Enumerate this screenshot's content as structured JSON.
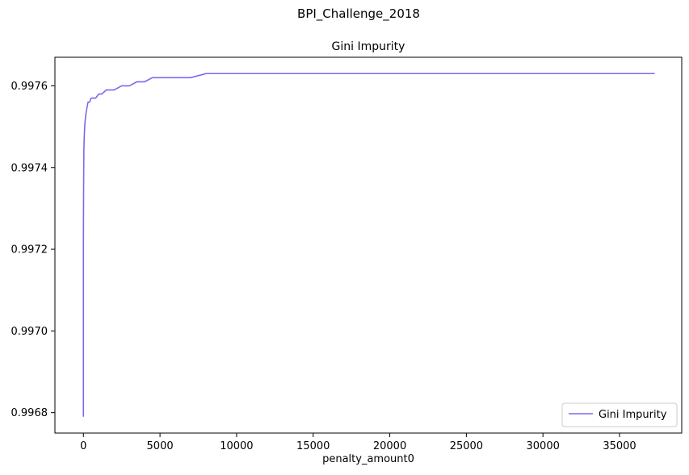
{
  "chart_data": {
    "type": "line",
    "title": "BPI_Challenge_2018",
    "subtitle": "Gini Impurity",
    "xlabel": "penalty_amount0",
    "ylabel": "",
    "xlim": [
      -1860,
      39060
    ],
    "ylim": [
      0.99675,
      0.99767
    ],
    "xticks": [
      0,
      5000,
      10000,
      15000,
      20000,
      25000,
      30000,
      35000
    ],
    "yticks": [
      0.9968,
      0.997,
      0.9972,
      0.9974,
      0.9976
    ],
    "xtick_labels": [
      "0",
      "5000",
      "10000",
      "15000",
      "20000",
      "25000",
      "30000",
      "35000"
    ],
    "ytick_labels": [
      "0.9968",
      "0.9970",
      "0.9972",
      "0.9974",
      "0.9976"
    ],
    "grid": false,
    "legend_position": "lower-right",
    "color": "#7b68ee",
    "series": [
      {
        "name": "Gini Impurity",
        "x": [
          0,
          0,
          10,
          20,
          30,
          50,
          70,
          100,
          130,
          160,
          200,
          250,
          300,
          400,
          500,
          600,
          800,
          1000,
          1200,
          1500,
          1800,
          2000,
          2500,
          3000,
          3500,
          4000,
          4000,
          4500,
          5000,
          6000,
          7000,
          8000,
          9000,
          10000,
          11000,
          15000,
          20000,
          25000,
          30000,
          37300
        ],
        "y": [
          0.99679,
          0.99722,
          0.99732,
          0.99739,
          0.99744,
          0.99747,
          0.99749,
          0.99751,
          0.99752,
          0.99753,
          0.99754,
          0.99755,
          0.99756,
          0.99756,
          0.99757,
          0.99757,
          0.99757,
          0.99758,
          0.99758,
          0.99759,
          0.99759,
          0.99759,
          0.9976,
          0.9976,
          0.99761,
          0.99761,
          0.99761,
          0.99762,
          0.99762,
          0.99762,
          0.99762,
          0.99763,
          0.99763,
          0.99763,
          0.99763,
          0.99763,
          0.99763,
          0.99763,
          0.99763,
          0.99763
        ]
      }
    ]
  }
}
